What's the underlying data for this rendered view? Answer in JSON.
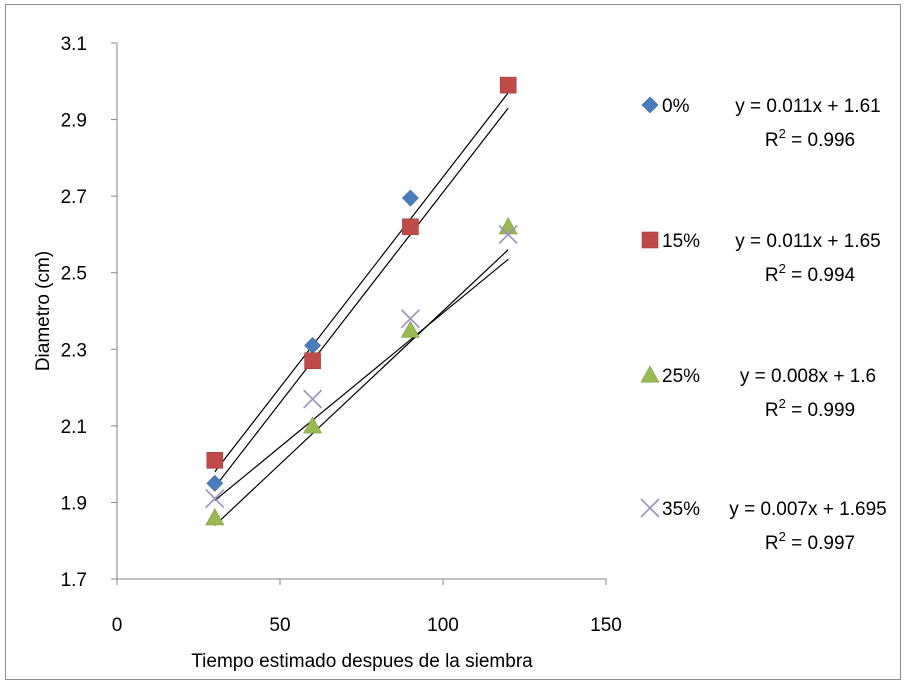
{
  "chart_data": {
    "type": "scatter",
    "xlabel": "Tiempo estimado despues de la siembra",
    "ylabel": "Diametro (cm)",
    "xlim": [
      0,
      150
    ],
    "ylim": [
      1.7,
      3.1
    ],
    "xticks": [
      0,
      50,
      100,
      150
    ],
    "yticks": [
      1.7,
      1.9,
      2.1,
      2.3,
      2.5,
      2.7,
      2.9,
      3.1
    ],
    "xtick_labels": [
      "0",
      "50",
      "100",
      "150"
    ],
    "ytick_labels": [
      "1.7",
      "1.9",
      "2.1",
      "2.3",
      "2.5",
      "2.7",
      "2.9",
      "3.1"
    ],
    "grid": false,
    "legend_position": "right",
    "series": [
      {
        "name": "0%",
        "marker": "diamond",
        "color": "#4a7ebb",
        "x": [
          30,
          60,
          90
        ],
        "y": [
          1.95,
          2.31,
          2.695
        ],
        "trendline": {
          "slope": 0.011,
          "intercept": 1.61,
          "x_range": [
            30,
            120
          ]
        },
        "equation": "y = 0.011x + 1.61",
        "r2_label": "R",
        "r2_value": " = 0.996"
      },
      {
        "name": "15%",
        "marker": "square",
        "color": "#be4b48",
        "x": [
          30,
          60,
          90,
          120
        ],
        "y": [
          2.01,
          2.27,
          2.62,
          2.99
        ],
        "trendline": {
          "slope": 0.011,
          "intercept": 1.65,
          "x_range": [
            30,
            120
          ]
        },
        "equation": "y = 0.011x + 1.65",
        "r2_label": "R",
        "r2_value": " = 0.994"
      },
      {
        "name": "25%",
        "marker": "triangle",
        "color": "#98b954",
        "x": [
          30,
          60,
          90,
          120
        ],
        "y": [
          1.86,
          2.1,
          2.35,
          2.62
        ],
        "trendline": {
          "slope": 0.008,
          "intercept": 1.6,
          "x_range": [
            30,
            120
          ]
        },
        "equation": "y = 0.008x + 1.6",
        "r2_label": "R",
        "r2_value": " = 0.999"
      },
      {
        "name": "35%",
        "marker": "x",
        "color": "#9d8ec2",
        "x": [
          30,
          60,
          90,
          120
        ],
        "y": [
          1.91,
          2.17,
          2.38,
          2.6
        ],
        "trendline": {
          "slope": 0.007,
          "intercept": 1.695,
          "x_range": [
            30,
            120
          ]
        },
        "equation": "y = 0.007x + 1.695",
        "r2_label": "R",
        "r2_value": " = 0.997"
      }
    ]
  }
}
